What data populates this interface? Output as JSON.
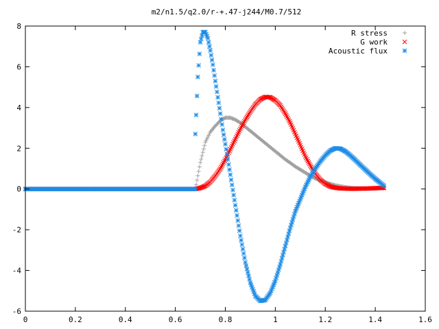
{
  "chart_data": {
    "type": "scatter",
    "title": "m2/n1.5/q2.0/r-+.47-j244/M0.7/512",
    "xlabel": "",
    "ylabel": "",
    "xlim": [
      0,
      1.6
    ],
    "ylim": [
      -6,
      8
    ],
    "x_ticks": [
      "0",
      "0.2",
      "0.4",
      "0.6",
      "0.8",
      "1",
      "1.2",
      "1.4",
      "1.6"
    ],
    "y_ticks": [
      "-6",
      "-4",
      "-2",
      "0",
      "2",
      "4",
      "6",
      "8"
    ],
    "grid": false,
    "legend_position": "top-right",
    "series": [
      {
        "name": "R stress",
        "marker": "plus",
        "color": "#a0a0a0",
        "x": [
          0.0,
          0.1,
          0.2,
          0.3,
          0.4,
          0.5,
          0.6,
          0.68,
          0.7,
          0.72,
          0.74,
          0.76,
          0.78,
          0.8,
          0.82,
          0.84,
          0.86,
          0.88,
          0.9,
          0.92,
          0.94,
          0.96,
          0.98,
          1.0,
          1.02,
          1.04,
          1.06,
          1.08,
          1.1,
          1.12,
          1.14,
          1.16,
          1.18,
          1.2,
          1.22,
          1.24,
          1.26,
          1.28,
          1.3,
          1.32,
          1.34,
          1.36,
          1.38,
          1.4,
          1.42,
          1.435
        ],
        "y": [
          0.0,
          0.0,
          0.0,
          0.0,
          0.0,
          0.0,
          0.0,
          0.0,
          1.3,
          2.3,
          2.8,
          3.1,
          3.35,
          3.5,
          3.5,
          3.4,
          3.25,
          3.05,
          2.85,
          2.65,
          2.45,
          2.25,
          2.05,
          1.85,
          1.65,
          1.45,
          1.28,
          1.1,
          0.95,
          0.8,
          0.65,
          0.52,
          0.42,
          0.33,
          0.25,
          0.18,
          0.13,
          0.09,
          0.06,
          0.04,
          0.03,
          0.02,
          0.02,
          0.03,
          0.04,
          0.05
        ]
      },
      {
        "name": "G work",
        "marker": "cross",
        "color": "#ff0000",
        "x": [
          0.0,
          0.1,
          0.2,
          0.3,
          0.4,
          0.5,
          0.6,
          0.68,
          0.7,
          0.72,
          0.74,
          0.76,
          0.78,
          0.8,
          0.82,
          0.84,
          0.86,
          0.88,
          0.9,
          0.92,
          0.94,
          0.96,
          0.98,
          1.0,
          1.02,
          1.04,
          1.06,
          1.08,
          1.1,
          1.12,
          1.14,
          1.16,
          1.18,
          1.2,
          1.22,
          1.24,
          1.26,
          1.28,
          1.3,
          1.32,
          1.34,
          1.36,
          1.38,
          1.4,
          1.42,
          1.435
        ],
        "y": [
          0.0,
          0.0,
          0.0,
          0.0,
          0.0,
          0.0,
          0.0,
          0.0,
          0.05,
          0.15,
          0.35,
          0.65,
          1.0,
          1.45,
          1.95,
          2.45,
          2.95,
          3.4,
          3.8,
          4.15,
          4.4,
          4.52,
          4.5,
          4.35,
          4.1,
          3.7,
          3.25,
          2.7,
          2.15,
          1.6,
          1.15,
          0.75,
          0.45,
          0.25,
          0.12,
          0.06,
          0.03,
          0.02,
          0.01,
          0.01,
          0.02,
          0.02,
          0.03,
          0.04,
          0.05,
          0.05
        ]
      },
      {
        "name": "Acoustic flux",
        "marker": "star",
        "color": "#1e8ce6",
        "x": [
          0.0,
          0.1,
          0.2,
          0.3,
          0.4,
          0.5,
          0.6,
          0.68,
          0.68,
          0.69,
          0.7,
          0.71,
          0.72,
          0.73,
          0.74,
          0.75,
          0.76,
          0.77,
          0.78,
          0.79,
          0.8,
          0.82,
          0.84,
          0.86,
          0.88,
          0.9,
          0.92,
          0.94,
          0.96,
          0.98,
          1.0,
          1.02,
          1.04,
          1.06,
          1.08,
          1.1,
          1.12,
          1.14,
          1.16,
          1.18,
          1.2,
          1.22,
          1.24,
          1.26,
          1.28,
          1.3,
          1.32,
          1.34,
          1.36,
          1.38,
          1.4,
          1.42,
          1.435
        ],
        "y": [
          0.0,
          0.0,
          0.0,
          0.0,
          0.0,
          0.0,
          0.0,
          0.0,
          2.7,
          5.5,
          7.2,
          7.7,
          7.7,
          7.4,
          6.8,
          6.1,
          5.3,
          4.5,
          3.7,
          2.9,
          2.2,
          0.7,
          -0.8,
          -2.3,
          -3.6,
          -4.6,
          -5.25,
          -5.5,
          -5.45,
          -5.1,
          -4.5,
          -3.7,
          -2.8,
          -1.9,
          -1.1,
          -0.5,
          0.1,
          0.6,
          1.0,
          1.35,
          1.65,
          1.88,
          2.0,
          1.98,
          1.85,
          1.65,
          1.42,
          1.18,
          0.95,
          0.72,
          0.5,
          0.3,
          0.15
        ]
      }
    ]
  }
}
